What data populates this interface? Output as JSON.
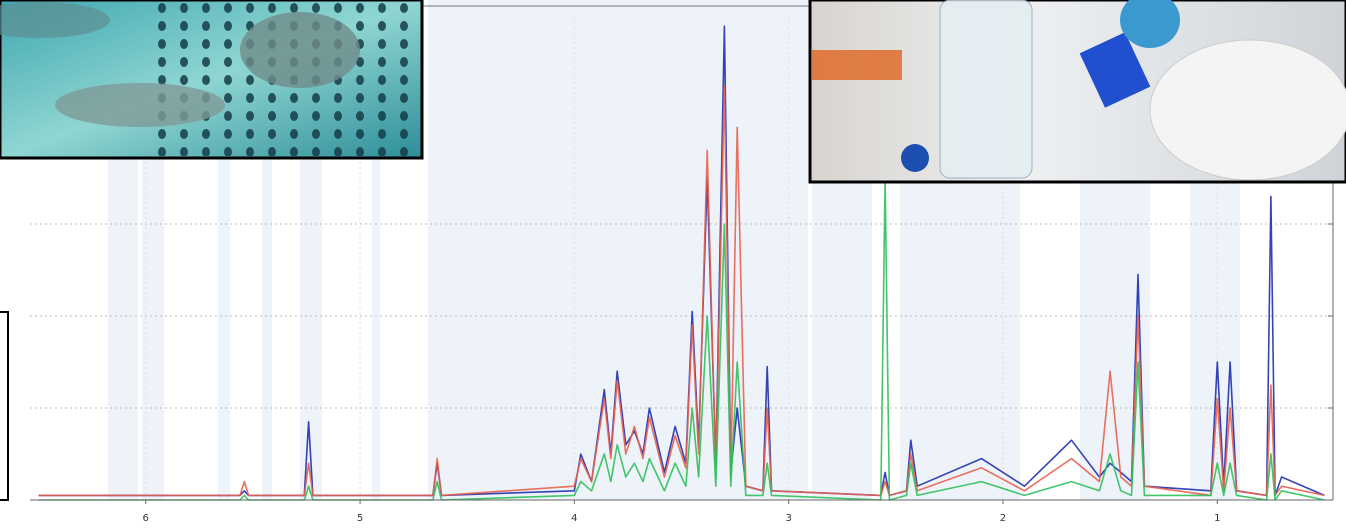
{
  "chart_data": {
    "type": "line",
    "x": [
      6.5,
      5.56,
      5.54,
      5.52,
      5.26,
      5.24,
      5.22,
      4.66,
      4.64,
      4.62,
      4.0,
      3.97,
      3.92,
      3.86,
      3.83,
      3.8,
      3.76,
      3.72,
      3.68,
      3.65,
      3.58,
      3.53,
      3.48,
      3.45,
      3.42,
      3.38,
      3.34,
      3.3,
      3.27,
      3.24,
      3.2,
      3.12,
      3.1,
      3.08,
      2.57,
      2.55,
      2.53,
      2.45,
      2.43,
      2.4,
      2.1,
      1.9,
      1.68,
      1.55,
      1.5,
      1.45,
      1.4,
      1.37,
      1.34,
      1.03,
      1.0,
      0.97,
      0.94,
      0.91,
      0.77,
      0.75,
      0.73,
      0.7,
      0.5
    ],
    "series": [
      {
        "color": "#1f2fb0",
        "values": [
          1,
          1,
          2,
          1,
          1,
          17,
          1,
          1,
          8,
          1,
          2,
          10,
          4,
          24,
          10,
          28,
          12,
          15,
          10,
          20,
          6,
          16,
          8,
          41,
          12,
          70,
          8,
          103,
          6,
          20,
          3,
          2,
          29,
          2,
          1,
          6,
          1,
          2,
          13,
          3,
          9,
          3,
          13,
          5,
          8,
          6,
          4,
          49,
          3,
          2,
          30,
          3,
          30,
          2,
          1,
          66,
          1,
          5,
          1
        ]
      },
      {
        "color": "#e8604c",
        "values": [
          1,
          1,
          4,
          1,
          1,
          8,
          1,
          1,
          9,
          1,
          3,
          9,
          4,
          22,
          9,
          26,
          10,
          16,
          9,
          18,
          5,
          14,
          7,
          38,
          10,
          76,
          7,
          90,
          5,
          81,
          3,
          2,
          20,
          2,
          1,
          4,
          1,
          2,
          10,
          2,
          7,
          2,
          9,
          4,
          28,
          5,
          3,
          40,
          3,
          1,
          22,
          2,
          20,
          2,
          1,
          25,
          1,
          3,
          1
        ]
      },
      {
        "color": "#2fbf5a",
        "values": [
          0,
          0,
          1,
          0,
          0,
          3,
          0,
          0,
          4,
          0,
          1,
          4,
          2,
          10,
          4,
          12,
          5,
          8,
          4,
          9,
          2,
          8,
          3,
          20,
          5,
          40,
          3,
          60,
          3,
          30,
          1,
          1,
          8,
          1,
          0,
          70,
          0,
          1,
          8,
          1,
          4,
          1,
          4,
          2,
          10,
          2,
          1,
          30,
          1,
          1,
          8,
          1,
          8,
          1,
          0,
          10,
          0,
          2,
          0
        ]
      }
    ],
    "xlim": [
      6.54,
      0.46
    ],
    "xticks": [
      6,
      5,
      4,
      3,
      2,
      1
    ],
    "ylim": [
      0,
      105
    ],
    "yticks": [
      20,
      40,
      60
    ],
    "grid": true
  }
}
